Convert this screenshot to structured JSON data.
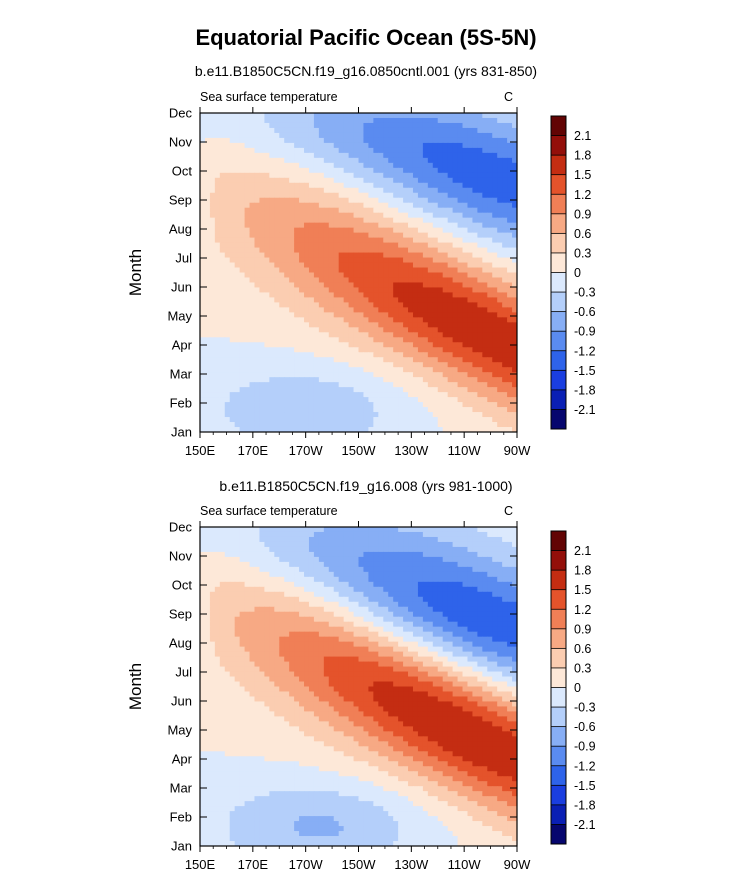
{
  "title": "Equatorial Pacific Ocean (5S-5N)",
  "chart_data": [
    {
      "type": "heatmap",
      "subtitle": "b.e11.B1850C5CN.f19_g16.0850cntl.001 (yrs 831-850)",
      "left_label": "Sea surface temperature",
      "units": "C",
      "ylabel": "Month",
      "y_ticks": [
        "Jan",
        "Feb",
        "Mar",
        "Apr",
        "May",
        "Jun",
        "Jul",
        "Aug",
        "Sep",
        "Oct",
        "Nov",
        "Dec"
      ],
      "x_ticks": [
        "150E",
        "170E",
        "170W",
        "150W",
        "130W",
        "110W",
        "90W"
      ],
      "x_range_deg_east": [
        150,
        270
      ],
      "contour_levels": [
        -2.1,
        -1.8,
        -1.5,
        -1.2,
        -0.9,
        -0.6,
        -0.3,
        0,
        0.3,
        0.6,
        0.9,
        1.2,
        1.5,
        1.8,
        2.1
      ],
      "colorbar_labels": [
        "2.1",
        "1.8",
        "1.5",
        "1.2",
        "0.9",
        "0.6",
        "0.3",
        "0",
        "-0.3",
        "-0.6",
        "-0.9",
        "-1.2",
        "-1.5",
        "-1.8",
        "-2.1"
      ],
      "field": {
        "warm_peak_C": 1.65,
        "warm_peak_lon": 265,
        "warm_peak_month": 4.1,
        "cold_peak_C": -1.35,
        "cold_peak_lon": 265,
        "cold_peak_month": 9.6,
        "winter_cold_C": -0.55,
        "winter_cold_lon": 190,
        "winter_cold_month": 1.8
      }
    },
    {
      "type": "heatmap",
      "subtitle": "b.e11.B1850C5CN.f19_g16.008 (yrs 981-1000)",
      "left_label": "Sea surface temperature",
      "units": "C",
      "ylabel": "Month",
      "y_ticks": [
        "Jan",
        "Feb",
        "Mar",
        "Apr",
        "May",
        "Jun",
        "Jul",
        "Aug",
        "Sep",
        "Oct",
        "Nov",
        "Dec"
      ],
      "x_ticks": [
        "150E",
        "170E",
        "170W",
        "150W",
        "130W",
        "110W",
        "90W"
      ],
      "x_range_deg_east": [
        150,
        270
      ],
      "contour_levels": [
        -2.1,
        -1.8,
        -1.5,
        -1.2,
        -0.9,
        -0.6,
        -0.3,
        0,
        0.3,
        0.6,
        0.9,
        1.2,
        1.5,
        1.8,
        2.1
      ],
      "colorbar_labels": [
        "2.1",
        "1.8",
        "1.5",
        "1.2",
        "0.9",
        "0.6",
        "0.3",
        "0",
        "-0.3",
        "-0.6",
        "-0.9",
        "-1.2",
        "-1.5",
        "-1.8",
        "-2.1"
      ],
      "field": {
        "warm_peak_C": 1.7,
        "warm_peak_lon": 258,
        "warm_peak_month": 4.6,
        "cold_peak_C": -1.45,
        "cold_peak_lon": 258,
        "cold_peak_month": 8.8,
        "winter_cold_C": -0.65,
        "winter_cold_lon": 195,
        "winter_cold_month": 1.7
      }
    }
  ],
  "colors": {
    "palette": [
      "#06066e",
      "#0a1fb4",
      "#1a3ee0",
      "#2e63ea",
      "#5a8bf0",
      "#87aef5",
      "#b4cffa",
      "#dbe9fd",
      "#fde8d8",
      "#fbcdb1",
      "#f7a984",
      "#f07f56",
      "#e4532b",
      "#c42d12",
      "#930f0a",
      "#620404"
    ]
  }
}
